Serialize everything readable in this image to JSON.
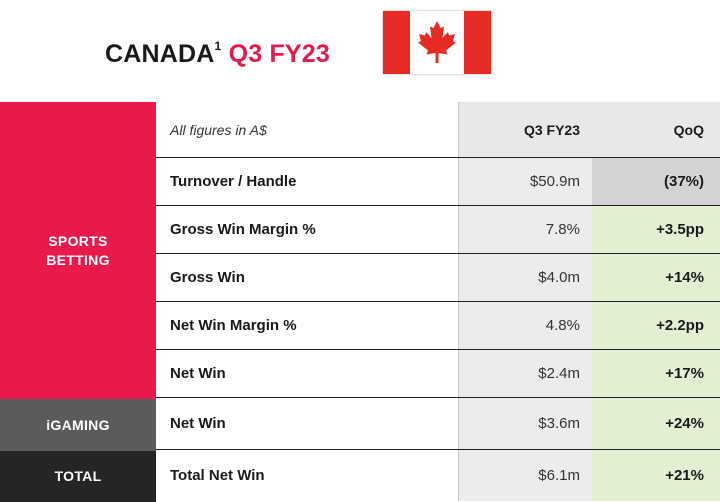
{
  "title": {
    "main": "CANADA",
    "superscript": "1",
    "period": "Q3 FY23"
  },
  "flag": {
    "icon": "canada-flag",
    "red": "#e52b24",
    "white": "#ffffff"
  },
  "segments": {
    "sports": {
      "line1": "SPORTS",
      "line2": "BETTING",
      "color": "#e8194b"
    },
    "igaming": {
      "label": "iGAMING",
      "color": "#5b5b5b"
    },
    "total": {
      "label": "TOTAL",
      "color": "#252525"
    }
  },
  "table": {
    "header": {
      "metric": "All figures in A$",
      "q3": "Q3 FY23",
      "qoq": "QoQ"
    },
    "rows": [
      {
        "metric": "Turnover / Handle",
        "q3": "$50.9m",
        "qoq": "(37%)"
      },
      {
        "metric": "Gross Win Margin %",
        "q3": "7.8%",
        "qoq": "+3.5pp"
      },
      {
        "metric": "Gross Win",
        "q3": "$4.0m",
        "qoq": "+14%"
      },
      {
        "metric": "Net Win Margin %",
        "q3": "4.8%",
        "qoq": "+2.2pp"
      },
      {
        "metric": "Net Win",
        "q3": "$2.4m",
        "qoq": "+17%"
      },
      {
        "metric": "Net Win",
        "q3": "$3.6m",
        "qoq": "+24%"
      },
      {
        "metric": "Total Net Win",
        "q3": "$6.1m",
        "qoq": "+21%"
      }
    ]
  },
  "colors": {
    "accent": "#e31b4a",
    "positive_bg": "#e3efd3",
    "negative_bg": "#d3d3d3"
  }
}
